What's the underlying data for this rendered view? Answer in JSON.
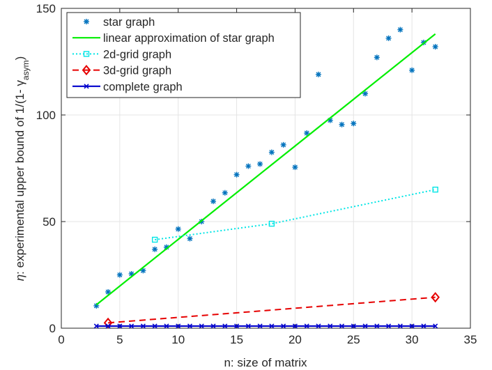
{
  "chart_data": {
    "type": "line",
    "xlabel": "n: size of matrix",
    "ylabel": {
      "prefix": "η",
      "main": ": experimental upper bound of 1/(1- γ",
      "sub": "asym",
      "suffix": ")"
    },
    "xlim": [
      0,
      35
    ],
    "ylim": [
      0,
      150
    ],
    "xticks": [
      0,
      5,
      10,
      15,
      20,
      25,
      30,
      35
    ],
    "yticks": [
      0,
      50,
      100,
      150
    ],
    "grid": true,
    "legend_position": "top-left",
    "series": [
      {
        "name": "star graph",
        "style": "markers",
        "marker": "asterisk",
        "color": "#0072bd",
        "x": [
          3,
          4,
          5,
          6,
          7,
          8,
          9,
          10,
          11,
          12,
          13,
          14,
          15,
          16,
          17,
          18,
          19,
          20,
          21,
          22,
          23,
          24,
          25,
          26,
          27,
          28,
          29,
          30,
          31,
          32
        ],
        "y": [
          10.5,
          17,
          25,
          25.5,
          27,
          37,
          38,
          46.5,
          42,
          50,
          59.5,
          63.5,
          72,
          76,
          77,
          82.5,
          86,
          75.5,
          91.5,
          119,
          97.5,
          95.5,
          96,
          110,
          127,
          136,
          140,
          121,
          134,
          132
        ]
      },
      {
        "name": "linear approximation of star graph",
        "style": "solid",
        "color": "#00ee00",
        "x": [
          3,
          32
        ],
        "y": [
          11,
          138
        ]
      },
      {
        "name": "2d-grid graph",
        "style": "dotted",
        "marker": "square",
        "color": "#00e5e5",
        "x": [
          8,
          18,
          32
        ],
        "y": [
          41.5,
          49,
          65
        ]
      },
      {
        "name": "3d-grid graph",
        "style": "dashed",
        "marker": "diamond",
        "color": "#e60000",
        "x": [
          4,
          32
        ],
        "y": [
          2.5,
          14.5
        ]
      },
      {
        "name": "complete graph",
        "style": "solid",
        "marker": "x",
        "color": "#0000cc",
        "x": [
          3,
          4,
          5,
          6,
          7,
          8,
          9,
          10,
          11,
          12,
          13,
          14,
          15,
          16,
          17,
          18,
          19,
          20,
          21,
          22,
          23,
          24,
          25,
          26,
          27,
          28,
          29,
          30,
          31,
          32
        ],
        "y": [
          1,
          1,
          1,
          1,
          1,
          1,
          1,
          1,
          1,
          1,
          1,
          1,
          1,
          1,
          1,
          1,
          1,
          1,
          1,
          1,
          1,
          1,
          1,
          1,
          1,
          1,
          1,
          1,
          1,
          1
        ]
      }
    ]
  }
}
